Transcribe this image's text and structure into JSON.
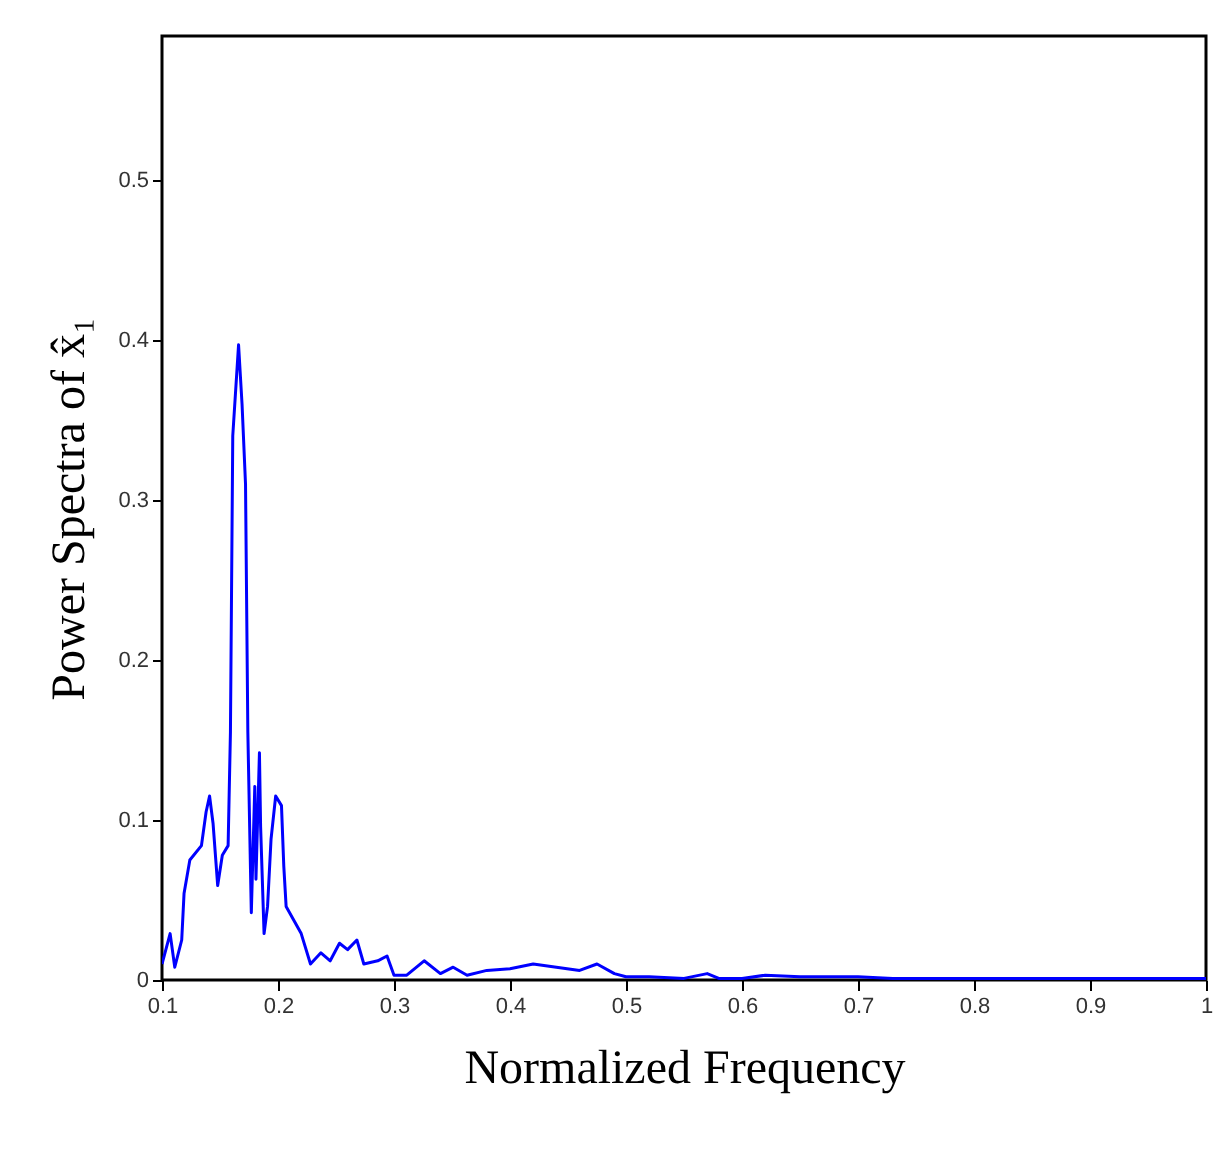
{
  "chart_data": {
    "type": "line",
    "xlabel": "Normalized Frequency",
    "ylabel": "Power Spectra of x̂₁",
    "x": [
      0.1,
      0.107,
      0.111,
      0.117,
      0.119,
      0.124,
      0.134,
      0.138,
      0.141,
      0.144,
      0.148,
      0.152,
      0.157,
      0.159,
      0.161,
      0.166,
      0.169,
      0.172,
      0.174,
      0.177,
      0.18,
      0.181,
      0.184,
      0.185,
      0.188,
      0.191,
      0.194,
      0.198,
      0.203,
      0.205,
      0.207,
      0.22,
      0.228,
      0.237,
      0.245,
      0.253,
      0.26,
      0.268,
      0.274,
      0.286,
      0.294,
      0.3,
      0.311,
      0.326,
      0.34,
      0.351,
      0.363,
      0.38,
      0.4,
      0.42,
      0.44,
      0.46,
      0.475,
      0.49,
      0.5,
      0.52,
      0.55,
      0.57,
      0.58,
      0.6,
      0.62,
      0.65,
      0.7,
      0.73,
      0.76,
      0.8,
      0.85,
      0.9,
      0.95,
      1.0
    ],
    "series": [
      {
        "color": "#0000ff",
        "values": [
          0.01,
          0.029,
          0.008,
          0.025,
          0.054,
          0.075,
          0.084,
          0.105,
          0.115,
          0.098,
          0.059,
          0.078,
          0.084,
          0.155,
          0.34,
          0.397,
          0.36,
          0.31,
          0.155,
          0.042,
          0.121,
          0.063,
          0.142,
          0.096,
          0.029,
          0.046,
          0.088,
          0.115,
          0.109,
          0.071,
          0.046,
          0.029,
          0.01,
          0.017,
          0.012,
          0.023,
          0.019,
          0.025,
          0.01,
          0.012,
          0.015,
          0.003,
          0.003,
          0.012,
          0.004,
          0.008,
          0.003,
          0.006,
          0.007,
          0.01,
          0.008,
          0.006,
          0.01,
          0.004,
          0.002,
          0.002,
          0.001,
          0.004,
          0.001,
          0.001,
          0.003,
          0.002,
          0.002,
          0.001,
          0.001,
          0.001,
          0.001,
          0.001,
          0.001,
          0.001
        ]
      }
    ],
    "xlim": [
      0.1,
      1
    ],
    "xticks": [
      0.1,
      0.2,
      0.3,
      0.4,
      0.5,
      0.6,
      0.7,
      0.8,
      0.9,
      1
    ],
    "ylim": [
      0,
      0.59
    ],
    "yticks": [
      0,
      0.1,
      0.2,
      0.3,
      0.4,
      0.5
    ],
    "grid": false,
    "marker": "none",
    "line_style": "solid"
  }
}
